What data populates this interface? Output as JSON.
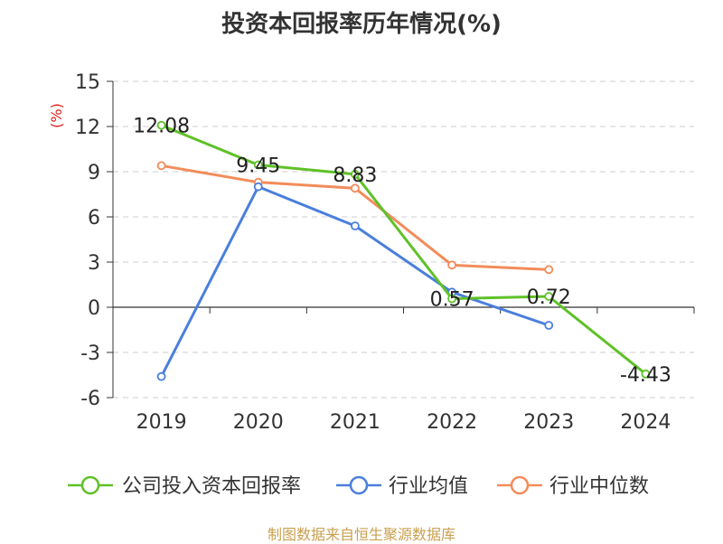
{
  "chart_data": {
    "type": "line",
    "title": "投资本回报率历年情况(%)",
    "ylabel": "(%)",
    "xlabel": "",
    "categories": [
      "2019",
      "2020",
      "2021",
      "2022",
      "2023",
      "2024"
    ],
    "ylim": [
      -6,
      15
    ],
    "yticks": [
      15,
      12,
      9,
      6,
      3,
      0,
      -3,
      -6
    ],
    "grid": true,
    "legend_position": "bottom",
    "series": [
      {
        "name": "公司投入资本回报率",
        "color": "#5fc128",
        "values": [
          12.08,
          9.45,
          8.83,
          0.57,
          0.72,
          -4.43
        ],
        "data_labels": [
          "12.08",
          "9.45",
          "8.83",
          "0.57",
          "0.72",
          "-4.43"
        ]
      },
      {
        "name": "行业均值",
        "color": "#4a7fdc",
        "values": [
          -4.6,
          8.0,
          5.4,
          1.0,
          -1.2,
          null
        ]
      },
      {
        "name": "行业中位数",
        "color": "#f28c5a",
        "values": [
          9.4,
          8.3,
          7.9,
          2.8,
          2.5,
          null
        ]
      }
    ]
  },
  "footer": {
    "source": "制图数据来自恒生聚源数据库"
  }
}
